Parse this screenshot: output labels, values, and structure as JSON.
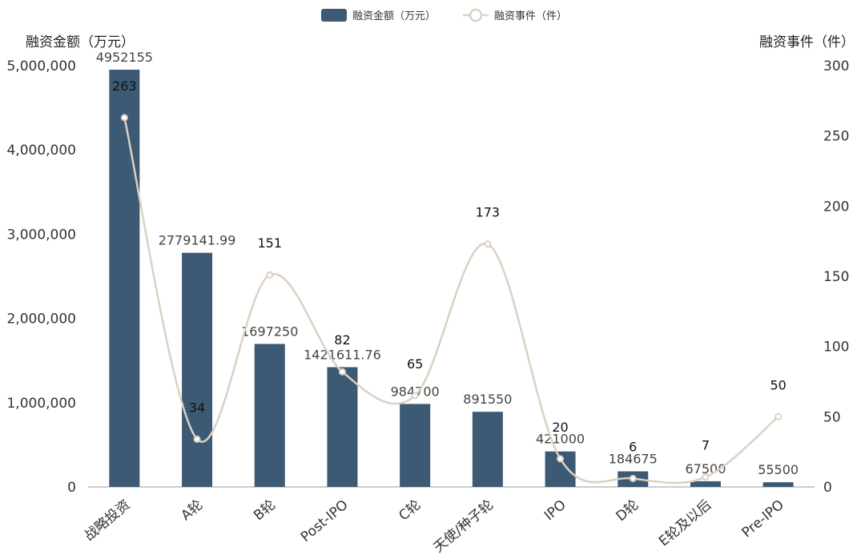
{
  "chart_data": {
    "type": "bar",
    "categories": [
      "战略投资",
      "A轮",
      "B轮",
      "Post-IPO",
      "C轮",
      "天使/种子轮",
      "IPO",
      "D轮",
      "E轮及以后",
      "Pre-IPO"
    ],
    "series": [
      {
        "name": "融资金额（万元）",
        "type": "bar",
        "axis": "left",
        "color": "#3d5a75",
        "values": [
          4952155,
          2779141.99,
          1697250,
          1421611.76,
          984700,
          891550,
          421000,
          184675,
          67500,
          55500
        ],
        "labels": [
          "4952155",
          "2779141.99",
          "1697250",
          "1421611.76",
          "984700",
          "891550",
          "421000",
          "184675",
          "67500",
          "55500"
        ]
      },
      {
        "name": "融资事件（件）",
        "type": "line",
        "smooth": true,
        "axis": "right",
        "color": "#ddd0c3",
        "values": [
          263,
          34,
          151,
          82,
          65,
          173,
          20,
          6,
          7,
          50
        ],
        "labels": [
          "263",
          "34",
          "151",
          "82",
          "65",
          "173",
          "20",
          "6",
          "7",
          "50"
        ]
      }
    ],
    "y_left": {
      "label": "融资金额（万元）",
      "range": [
        0,
        5000000
      ],
      "ticks": [
        0,
        1000000,
        2000000,
        3000000,
        4000000,
        5000000
      ],
      "tick_labels": [
        "0",
        "1,000,000",
        "2,000,000",
        "3,000,000",
        "4,000,000",
        "5,000,000"
      ]
    },
    "y_right": {
      "label": "融资事件（件）",
      "range": [
        0,
        300
      ],
      "ticks": [
        0,
        50,
        100,
        150,
        200,
        250,
        300
      ],
      "tick_labels": [
        "0",
        "50",
        "100",
        "150",
        "200",
        "250",
        "300"
      ]
    },
    "legend": {
      "position": "top-center",
      "items": [
        "融资金额（万元）",
        "融资事件（件）"
      ]
    },
    "grid": false
  }
}
